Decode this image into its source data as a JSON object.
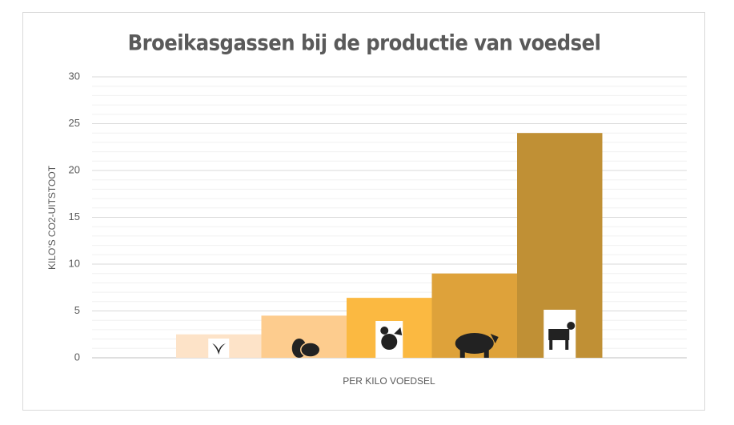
{
  "chart_data": {
    "type": "bar",
    "title": "Broeikasgassen bij de productie van voedsel",
    "x_label": "PER KILO VOEDSEL",
    "y_label": "KILO'S CO2-UITSTOOT",
    "categories": [
      null,
      null,
      null,
      null,
      null
    ],
    "values": [
      2.5,
      4.5,
      6.4,
      9,
      24
    ],
    "colors": [
      "#fde3c8",
      "#fdcc8e",
      "#fbb941",
      "#dea23a",
      "#c09035"
    ],
    "ylim": [
      0,
      30
    ],
    "yticks": [
      0,
      5,
      10,
      15,
      20,
      25,
      30
    ],
    "grid": true
  }
}
